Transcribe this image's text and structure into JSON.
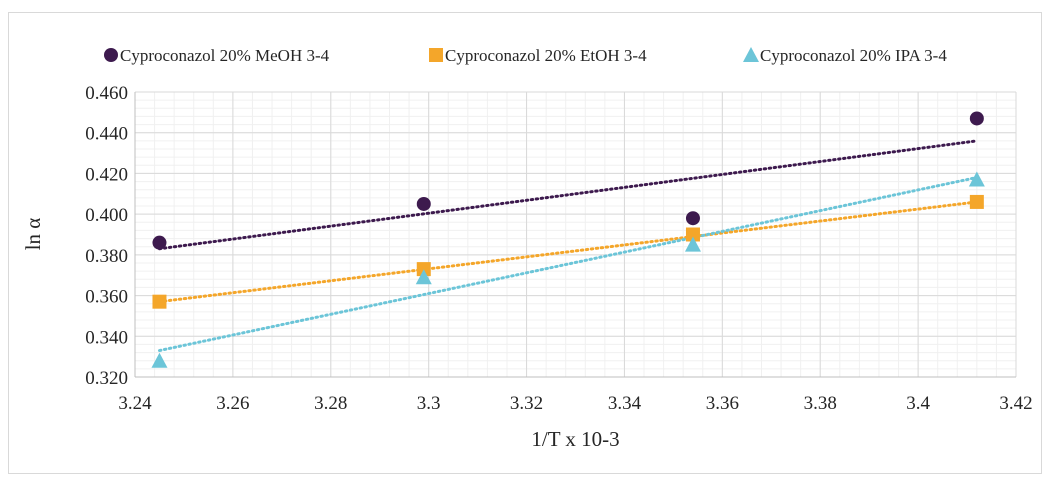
{
  "chart_data": {
    "type": "scatter",
    "title": "",
    "xlabel": "1/T x 10-3",
    "ylabel": "ln α",
    "xlim": [
      3.24,
      3.42
    ],
    "ylim": [
      0.32,
      0.46
    ],
    "x_ticks": [
      "3.24",
      "3.26",
      "3.28",
      "3.3",
      "3.32",
      "3.34",
      "3.36",
      "3.38",
      "3.4",
      "3.42"
    ],
    "y_ticks": [
      "0.320",
      "0.340",
      "0.360",
      "0.380",
      "0.400",
      "0.420",
      "0.440",
      "0.460"
    ],
    "grid": true,
    "legend_position": "top",
    "trendline": "linear-dotted",
    "series": [
      {
        "name": "Cyproconazol 20% MeOH 3-4",
        "marker": "circle",
        "color": "#3d1a4e",
        "points": [
          [
            3.245,
            0.386
          ],
          [
            3.299,
            0.405
          ],
          [
            3.354,
            0.398
          ],
          [
            3.412,
            0.447
          ]
        ],
        "fit": [
          [
            3.245,
            0.383
          ],
          [
            3.412,
            0.436
          ]
        ]
      },
      {
        "name": "Cyproconazol 20% EtOH 3-4",
        "marker": "square",
        "color": "#f4a62a",
        "points": [
          [
            3.245,
            0.357
          ],
          [
            3.299,
            0.373
          ],
          [
            3.354,
            0.39
          ],
          [
            3.412,
            0.406
          ]
        ],
        "fit": [
          [
            3.245,
            0.357
          ],
          [
            3.412,
            0.406
          ]
        ]
      },
      {
        "name": "Cyproconazol 20% IPA 3-4",
        "marker": "triangle",
        "color": "#6cc5d8",
        "points": [
          [
            3.245,
            0.328
          ],
          [
            3.299,
            0.369
          ],
          [
            3.354,
            0.385
          ],
          [
            3.412,
            0.417
          ]
        ],
        "fit": [
          [
            3.245,
            0.333
          ],
          [
            3.412,
            0.418
          ]
        ]
      }
    ]
  }
}
